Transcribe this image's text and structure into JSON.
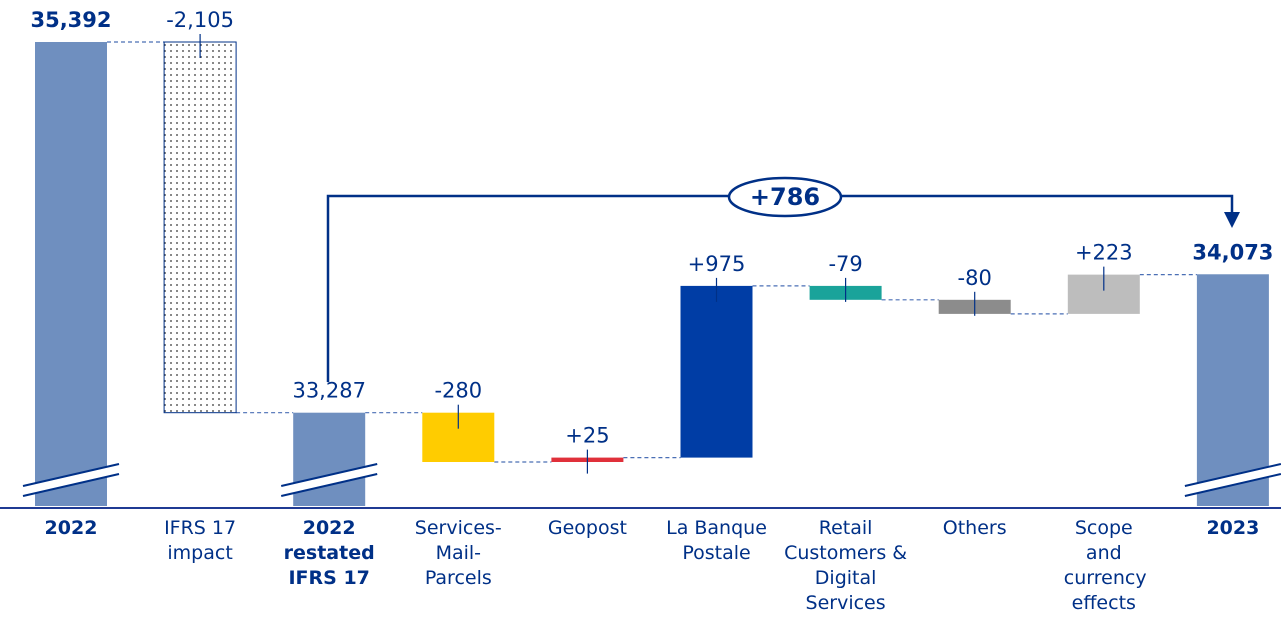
{
  "chart_data": {
    "type": "waterfall",
    "categories": [
      "2022",
      "IFRS 17 impact",
      "2022 restated IFRS 17",
      "Services-Mail-Parcels",
      "Geopost",
      "La Banque Postale",
      "Retail Customers & Digital Services",
      "Others",
      "Scope and currency effects",
      "2023"
    ],
    "values": [
      35392,
      -2105,
      33287,
      -280,
      25,
      975,
      -79,
      -80,
      223,
      34073
    ],
    "value_labels": [
      "35,392",
      "-2,105",
      "33,287",
      "-280",
      "+25",
      "+975",
      "-79",
      "-80",
      "+223",
      "34,073"
    ],
    "measures": [
      "total",
      "relative",
      "total",
      "relative",
      "relative",
      "relative",
      "relative",
      "relative",
      "relative",
      "total"
    ],
    "colors": [
      "#6f8fbf",
      "dots",
      "#6f8fbf",
      "#ffcc00",
      "#e0303a",
      "#003da5",
      "#1aa39a",
      "#8c8c8c",
      "#bdbdbd",
      "#6f8fbf"
    ],
    "annotation": "+786"
  }
}
